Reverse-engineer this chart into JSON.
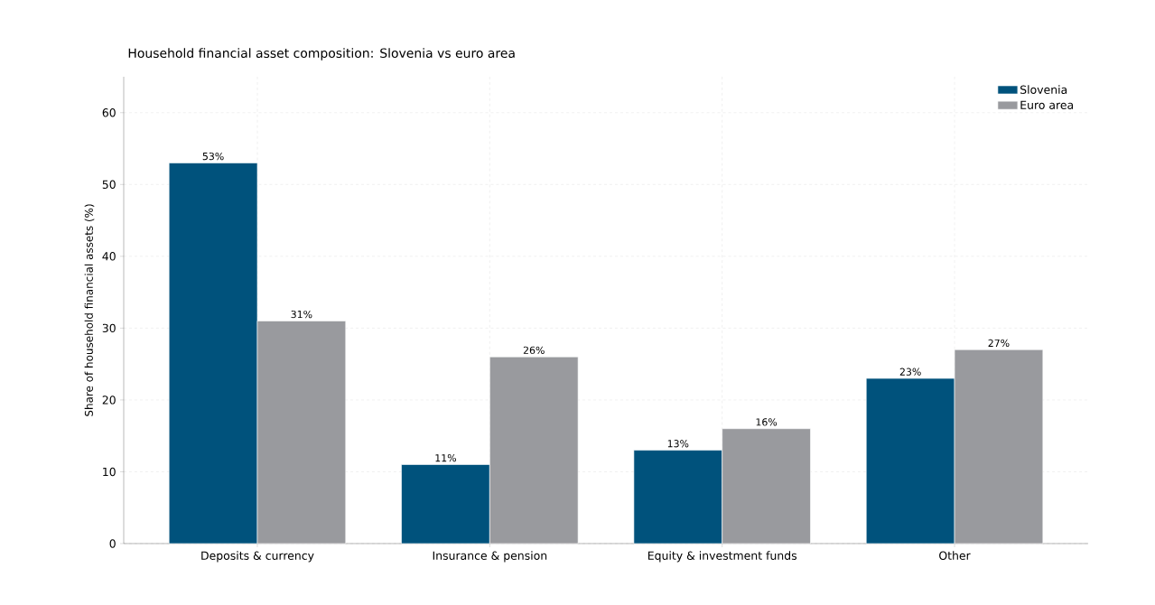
{
  "chart_data": {
    "type": "bar",
    "title": "Household financial asset composition: Slovenia vs euro area",
    "ylabel": "Share of household financial assets (%)",
    "categories": [
      "Deposits & currency",
      "Insurance & pension",
      "Equity & investment funds",
      "Other"
    ],
    "series": [
      {
        "name": "Slovenia",
        "color": "#00527c",
        "values": [
          53,
          11,
          13,
          23
        ],
        "value_labels": [
          "53%",
          "11%",
          "13%",
          "23%"
        ]
      },
      {
        "name": "Euro area",
        "color": "#999a9e",
        "values": [
          31,
          26,
          16,
          27
        ],
        "value_labels": [
          "31%",
          "26%",
          "16%",
          "27%"
        ]
      }
    ],
    "ylim": [
      0,
      65
    ],
    "yticks": [
      0,
      10,
      20,
      30,
      40,
      50,
      60
    ],
    "grid": true,
    "legend": "top right"
  }
}
